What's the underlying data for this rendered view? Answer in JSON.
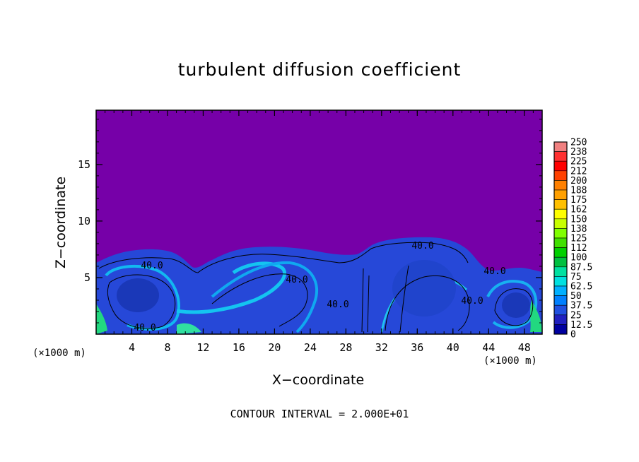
{
  "chart_data": {
    "type": "heatmap",
    "title": "turbulent diffusion coefficient",
    "xlabel": "X−coordinate",
    "ylabel": "Z−coordinate",
    "x_unit_left": "(×1000 m)",
    "x_unit_right": "(×1000 m)",
    "footnote": "CONTOUR INTERVAL = 2.000E+01",
    "xlim": [
      0,
      50
    ],
    "ylim": [
      0,
      19.8
    ],
    "x_ticks": [
      "4",
      "8",
      "12",
      "16",
      "20",
      "24",
      "28",
      "32",
      "36",
      "40",
      "44",
      "48"
    ],
    "y_ticks": [
      "5",
      "10",
      "15"
    ],
    "contour_labels": [
      "40.0",
      "40.0",
      "40.0",
      "40.0",
      "40.0",
      "40.0",
      "40.0"
    ],
    "colorbar": {
      "labels": [
        "250",
        "238",
        "225",
        "212",
        "200",
        "188",
        "175",
        "162",
        "150",
        "138",
        "125",
        "112",
        "100",
        "87.5",
        "75",
        "62.5",
        "50",
        "37.5",
        "25",
        "12.5",
        "0"
      ],
      "colors": [
        "#f08080",
        "#ff3030",
        "#ff0000",
        "#ff4000",
        "#ff8000",
        "#ffa000",
        "#ffc000",
        "#ffff00",
        "#c8ff00",
        "#80ff00",
        "#40e000",
        "#00d000",
        "#00c040",
        "#00e0a0",
        "#00e0e0",
        "#00b0ff",
        "#0080ff",
        "#2050e0",
        "#2020c0",
        "#0000a0",
        "#7000a8"
      ]
    },
    "background_color": "#7600a8"
  }
}
